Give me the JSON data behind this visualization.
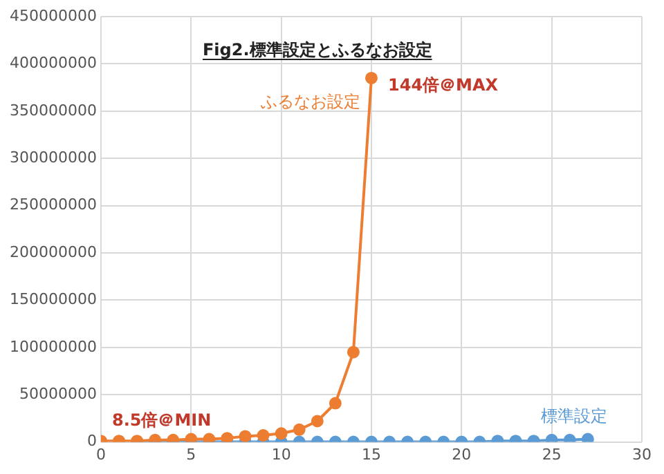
{
  "chart_data": {
    "type": "line",
    "title": "Fig2.標準設定とふるなお設定",
    "xlim": [
      0,
      30
    ],
    "xticks": [
      0,
      5,
      10,
      15,
      20,
      25,
      30
    ],
    "ylim": [
      0,
      450000000
    ],
    "yticks": [
      0,
      50000000,
      100000000,
      150000000,
      200000000,
      250000000,
      300000000,
      350000000,
      400000000,
      450000000
    ],
    "grid": true,
    "legend": false,
    "marker": "circle",
    "line_style": "solid",
    "series": [
      {
        "name": "ふるなお設定",
        "color": "#ed7d31",
        "x": [
          0,
          1,
          2,
          3,
          4,
          5,
          6,
          7,
          8,
          9,
          10,
          11,
          12,
          13,
          14,
          15
        ],
        "values": [
          1000000,
          1000000,
          1000000,
          2000000,
          2000000,
          3000000,
          3000000,
          4000000,
          6000000,
          7000000,
          9000000,
          13000000,
          22000000,
          41000000,
          95000000,
          385000000
        ]
      },
      {
        "name": "標準設定",
        "color": "#5b9bd5",
        "x": [
          2,
          3,
          4,
          5,
          6,
          7,
          8,
          9,
          10,
          11,
          12,
          13,
          14,
          15,
          16,
          17,
          18,
          19,
          20,
          21,
          22,
          23,
          24,
          25,
          26,
          27
        ],
        "values": [
          0,
          0,
          0,
          0,
          0,
          0,
          0,
          0,
          0,
          0,
          0,
          0,
          0,
          0,
          0,
          0,
          0,
          0,
          0,
          0,
          1000000,
          1000000,
          1000000,
          2000000,
          2000000,
          3000000
        ]
      }
    ],
    "annotations": [
      {
        "text": "144倍＠MAX",
        "x": 15,
        "y": 385000000
      },
      {
        "text": "8.5倍＠MIN",
        "x": 0,
        "y": 1000000
      }
    ]
  }
}
